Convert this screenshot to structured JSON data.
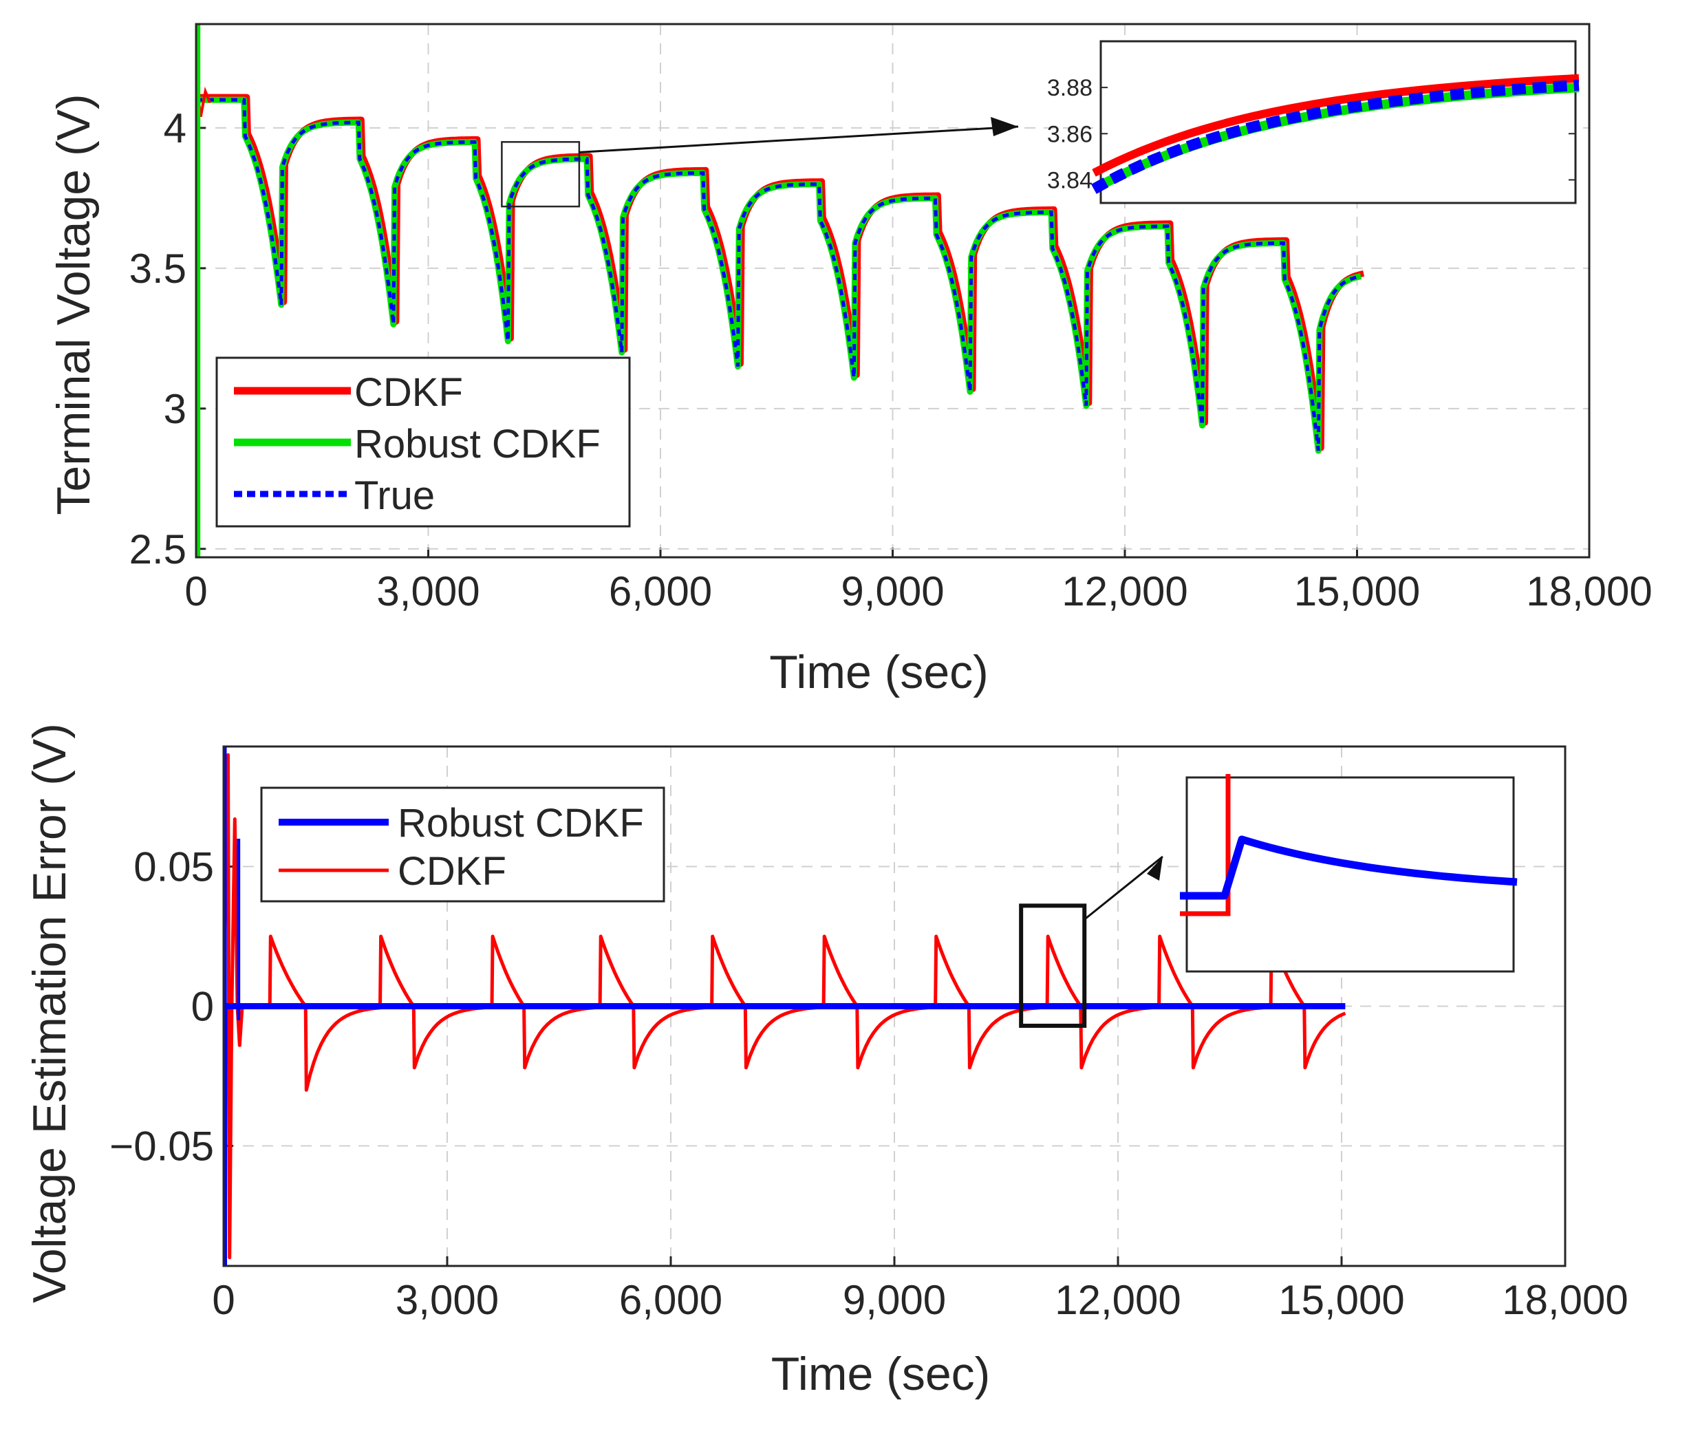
{
  "chart_data": [
    {
      "id": "top",
      "type": "line",
      "xlabel": "Time (sec)",
      "ylabel": "Terminal Voltage (V)",
      "xlim": [
        0,
        18000
      ],
      "ylim": [
        2.47,
        4.37
      ],
      "xticks": [
        0,
        3000,
        6000,
        9000,
        12000,
        15000,
        18000
      ],
      "xtick_labels": [
        "0",
        "3,000",
        "6,000",
        "9,000",
        "12,000",
        "15,000",
        "18,000"
      ],
      "yticks": [
        2.5,
        3,
        3.5,
        4
      ],
      "ytick_labels": [
        "2.5",
        "3",
        "3.5",
        "4"
      ],
      "grid": true,
      "legend": [
        {
          "label": "CDKF",
          "color": "#ff0000",
          "style": "solid"
        },
        {
          "label": "Robust CDKF",
          "color": "#00e000",
          "style": "solid"
        },
        {
          "label": "True",
          "color": "#0000ff",
          "style": "dotted"
        }
      ],
      "series": [
        {
          "name": "CDKF",
          "color": "#ff0000"
        },
        {
          "name": "Robust CDKF",
          "color": "#00e000"
        },
        {
          "name": "True",
          "color": "#0000ff"
        }
      ],
      "profile": {
        "initial_voltage": 4.1,
        "discharge_start_times": [
          620,
          2100,
          3600,
          5050,
          6550,
          8050,
          9550,
          11050,
          12550,
          14050
        ],
        "discharge_end_times": [
          1100,
          2550,
          4030,
          5500,
          7000,
          8500,
          10000,
          11500,
          13000,
          14500
        ],
        "min_voltages": [
          3.37,
          3.3,
          3.24,
          3.2,
          3.15,
          3.11,
          3.06,
          3.01,
          2.94,
          2.85
        ],
        "rest_plateau_voltages": [
          4.02,
          3.95,
          3.89,
          3.84,
          3.8,
          3.75,
          3.7,
          3.65,
          3.59,
          3.48
        ],
        "end_time": 15050
      },
      "zoom_region": {
        "x": [
          3950,
          4950
        ],
        "y": [
          3.72,
          3.95
        ]
      },
      "inset": {
        "ylim": [
          3.83,
          3.9
        ],
        "yticks": [
          3.84,
          3.86,
          3.88
        ],
        "ytick_labels": [
          "3.84",
          "3.86",
          "3.88"
        ],
        "series": [
          {
            "name": "CDKF",
            "color": "#ff0000",
            "start": 3.843,
            "end": 3.884
          },
          {
            "name": "Robust CDKF",
            "color": "#00e000",
            "start": 3.836,
            "end": 3.88
          },
          {
            "name": "True",
            "color": "#0000ff",
            "start": 3.836,
            "end": 3.881
          }
        ]
      }
    },
    {
      "id": "bottom",
      "type": "line",
      "xlabel": "Time (sec)",
      "ylabel": "Voltage Estimation Error (V)",
      "xlim": [
        0,
        18000
      ],
      "ylim": [
        -0.093,
        0.093
      ],
      "xticks": [
        0,
        3000,
        6000,
        9000,
        12000,
        15000,
        18000
      ],
      "xtick_labels": [
        "0",
        "3,000",
        "6,000",
        "9,000",
        "12,000",
        "15,000",
        "18,000"
      ],
      "yticks": [
        -0.05,
        0,
        0.05
      ],
      "ytick_labels": [
        "−0.05",
        "0",
        "0.05"
      ],
      "grid": true,
      "legend": [
        {
          "label": "Robust CDKF",
          "color": "#0000ff",
          "style": "solid"
        },
        {
          "label": "CDKF",
          "color": "#ff0000",
          "style": "solid"
        }
      ],
      "series": [
        {
          "name": "Robust CDKF",
          "color": "#0000ff",
          "steady_value": 0.0
        },
        {
          "name": "CDKF",
          "color": "#ff0000",
          "spike_peak": 0.025,
          "dip_value": -0.022,
          "first_dip_value": -0.03,
          "initial_transient_peak": 0.067,
          "initial_transient_min": -0.014
        }
      ],
      "zoom_region": {
        "x": [
          10700,
          11550
        ],
        "y": [
          -0.007,
          0.036
        ]
      }
    }
  ]
}
